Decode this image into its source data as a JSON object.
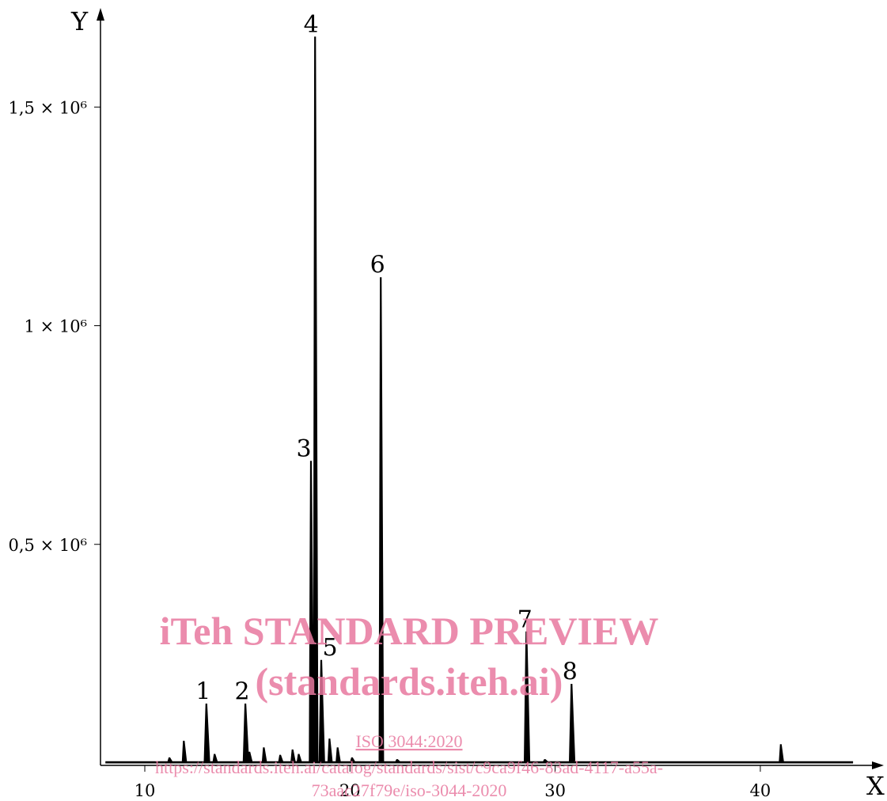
{
  "chart_data": {
    "type": "line",
    "xlabel": "X",
    "ylabel": "Y",
    "xlim": [
      7.8,
      45.5
    ],
    "ylim": [
      0,
      1720000
    ],
    "x_ticks": [
      {
        "value": 10,
        "label": "10"
      },
      {
        "value": 20,
        "label": "20"
      },
      {
        "value": 30,
        "label": "30"
      },
      {
        "value": 40,
        "label": "40"
      }
    ],
    "y_ticks": [
      {
        "value": 500000,
        "label": "0,5 × 10⁶"
      },
      {
        "value": 1000000,
        "label": "1 × 10⁶"
      },
      {
        "value": 1500000,
        "label": "1,5 × 10⁶"
      }
    ],
    "baseline": 3000,
    "peaks": [
      {
        "label": "1",
        "x": 13.0,
        "y": 135000
      },
      {
        "label": "2",
        "x": 14.9,
        "y": 135000
      },
      {
        "label": "3",
        "x": 18.1,
        "y": 690000
      },
      {
        "label": "4",
        "x": 18.3,
        "y": 1660000
      },
      {
        "label": "5",
        "x": 18.6,
        "y": 235000
      },
      {
        "label": "6",
        "x": 21.5,
        "y": 1110000
      },
      {
        "label": "7",
        "x": 28.6,
        "y": 300000
      },
      {
        "label": "8",
        "x": 30.8,
        "y": 180000
      }
    ],
    "minor_peaks": [
      {
        "x": 11.2,
        "y": 12000
      },
      {
        "x": 11.9,
        "y": 50000
      },
      {
        "x": 13.4,
        "y": 20000
      },
      {
        "x": 15.1,
        "y": 25000
      },
      {
        "x": 15.8,
        "y": 35000
      },
      {
        "x": 16.6,
        "y": 18000
      },
      {
        "x": 17.2,
        "y": 30000
      },
      {
        "x": 17.5,
        "y": 20000
      },
      {
        "x": 19.0,
        "y": 55000
      },
      {
        "x": 19.4,
        "y": 35000
      },
      {
        "x": 20.1,
        "y": 12000
      },
      {
        "x": 22.3,
        "y": 8000
      },
      {
        "x": 29.5,
        "y": 8000
      },
      {
        "x": 41.0,
        "y": 42000
      }
    ]
  },
  "watermark": {
    "line1": "iTeh STANDARD PREVIEW",
    "line2": "(standards.iteh.ai)",
    "line3": "ISO 3044:2020",
    "line4": "https://standards.iteh.ai/catalog/standards/sist/c9ca9f46-83ad-4117-a55a-",
    "line5": "73aac27f79e/iso-3044-2020",
    "color": "#e8799f"
  }
}
